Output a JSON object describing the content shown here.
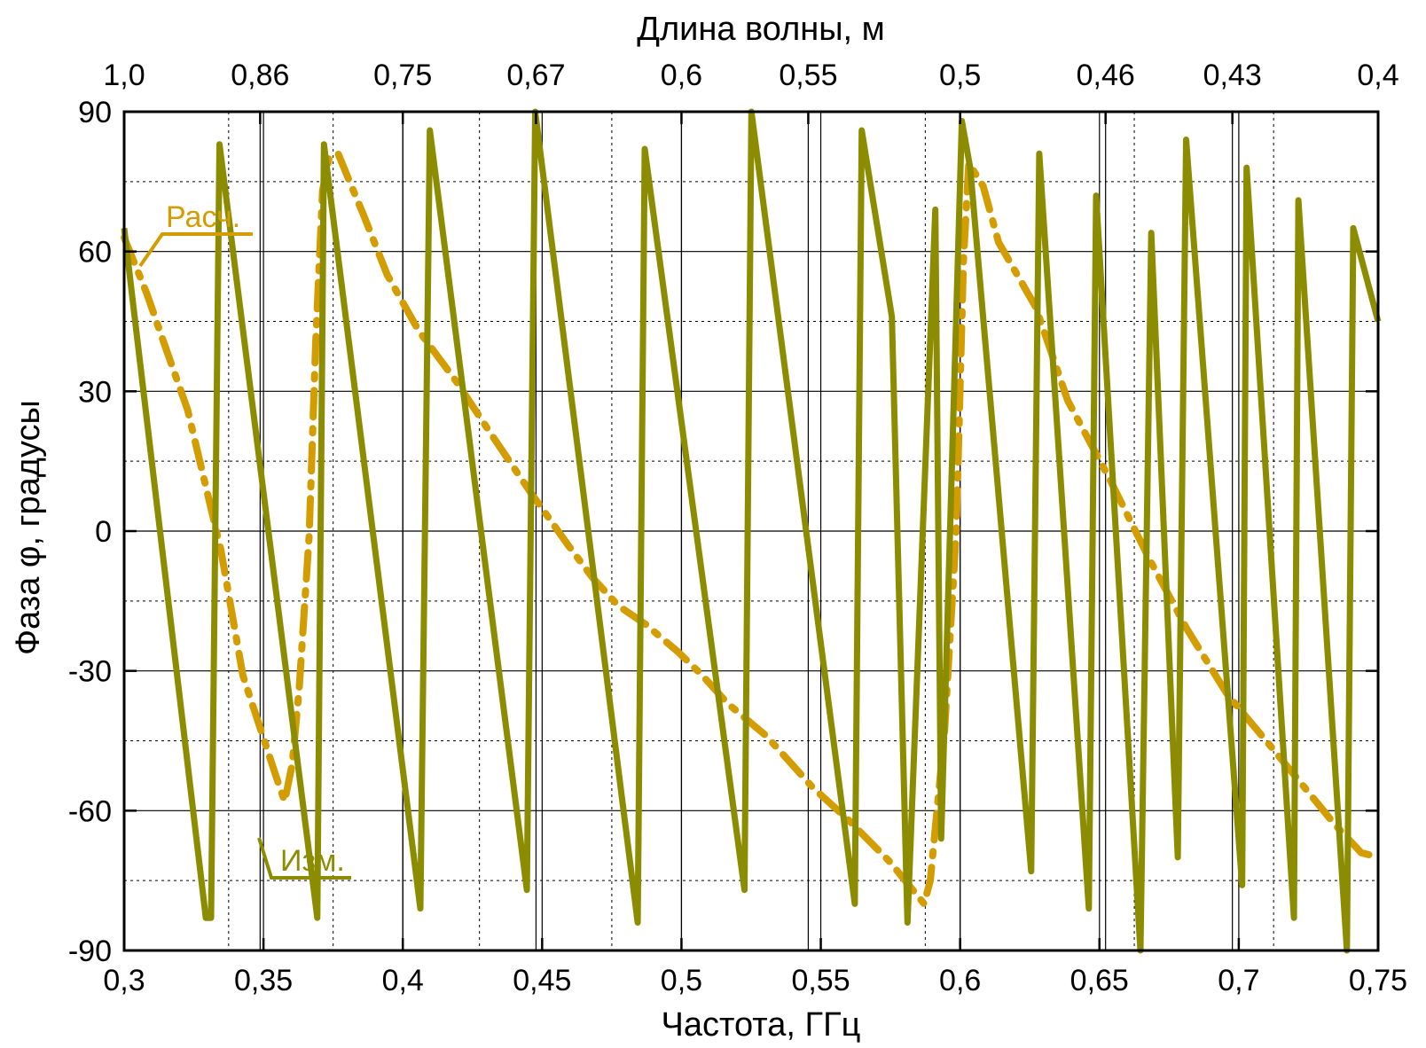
{
  "chart_data": {
    "type": "line",
    "title": "",
    "xlabel": "Частота, ГГц",
    "ylabel": "Фаза φ, градусы",
    "x2label": "Длина волны, м",
    "xlim": [
      0.3,
      0.75
    ],
    "ylim": [
      -90,
      90
    ],
    "grid": true,
    "x_ticks": [
      0.3,
      0.35,
      0.4,
      0.45,
      0.5,
      0.55,
      0.6,
      0.65,
      0.7,
      0.75
    ],
    "x_tick_labels": [
      "0,3",
      "0,35",
      "0,4",
      "0,45",
      "0,5",
      "0,55",
      "0,6",
      "0,65",
      "0,7",
      "0,75"
    ],
    "x_minor_ticks": [
      0.3375,
      0.375,
      0.4275,
      0.475,
      0.5875,
      0.6625,
      0.7125
    ],
    "y_ticks": [
      -90,
      -60,
      -30,
      0,
      30,
      60,
      90
    ],
    "y_tick_labels": [
      "-90",
      "-60",
      "-30",
      "0",
      "30",
      "60",
      "90"
    ],
    "y_minor_ticks": [
      -75,
      -45,
      -15,
      15,
      45,
      75
    ],
    "top_ticks": [
      {
        "label": "1,0",
        "freq": 0.3
      },
      {
        "label": "0,86",
        "freq": 0.3488
      },
      {
        "label": "0,75",
        "freq": 0.4
      },
      {
        "label": "0,67",
        "freq": 0.4478
      },
      {
        "label": "0,6",
        "freq": 0.5
      },
      {
        "label": "0,55",
        "freq": 0.5455
      },
      {
        "label": "0,5",
        "freq": 0.6
      },
      {
        "label": "0,46",
        "freq": 0.6522
      },
      {
        "label": "0,43",
        "freq": 0.6977
      },
      {
        "label": "0,4",
        "freq": 0.75
      }
    ],
    "series": [
      {
        "name": "Изм.",
        "color": "#8c8c00",
        "style": "solid",
        "x": [
          0.3,
          0.3293,
          0.3312,
          0.3342,
          0.3693,
          0.3717,
          0.4063,
          0.4097,
          0.4445,
          0.4475,
          0.4843,
          0.4868,
          0.5226,
          0.5251,
          0.5622,
          0.5647,
          0.5755,
          0.5811,
          0.5911,
          0.5932,
          0.6006,
          0.6036,
          0.6255,
          0.6284,
          0.6462,
          0.6488,
          0.6647,
          0.6686,
          0.6781,
          0.6811,
          0.7012,
          0.7028,
          0.7198,
          0.7214,
          0.7388,
          0.7411,
          0.75
        ],
        "y": [
          65,
          -83,
          -83,
          83,
          -83,
          83,
          -81,
          86,
          -77,
          90,
          -84,
          82,
          -77,
          90,
          -80,
          86,
          46,
          -84,
          69,
          -66,
          88,
          78,
          -73,
          81,
          -81,
          72,
          -90,
          64,
          -70,
          84,
          -76,
          78,
          -83,
          71,
          -90,
          65,
          45
        ]
      },
      {
        "name": "Расч.",
        "color": "#d39c00",
        "style": "dashdot",
        "x": [
          0.3,
          0.3081,
          0.3151,
          0.3228,
          0.3347,
          0.3426,
          0.3547,
          0.3576,
          0.3603,
          0.3628,
          0.3664,
          0.3687,
          0.3712,
          0.3735,
          0.3768,
          0.3809,
          0.3858,
          0.3944,
          0.4057,
          0.4193,
          0.4326,
          0.4462,
          0.4593,
          0.4681,
          0.4773,
          0.4871,
          0.4989,
          0.5075,
          0.5166,
          0.5305,
          0.5471,
          0.5599,
          0.5748,
          0.5871,
          0.5893,
          0.5944,
          0.5986,
          0.6012,
          0.6031,
          0.6083,
          0.6138,
          0.6272,
          0.6386,
          0.6538,
          0.6679,
          0.6814,
          0.6958,
          0.7112,
          0.7236,
          0.7345,
          0.7439,
          0.75
        ],
        "y": [
          63,
          51,
          39,
          26,
          -4,
          -31,
          -53,
          -58,
          -50,
          -34,
          -1,
          40,
          73,
          80,
          81,
          75,
          68,
          55,
          43,
          32,
          20,
          8,
          -3,
          -10,
          -16,
          -20,
          -26,
          -31,
          -37,
          -44,
          -55,
          -62,
          -71,
          -80,
          -75,
          -43,
          0,
          58,
          79,
          74,
          62,
          48,
          28,
          11,
          -6,
          -21,
          -35,
          -46,
          -55,
          -63,
          -69,
          -70
        ]
      }
    ],
    "annotations": [
      {
        "text": "Расч.",
        "series": "Расч."
      },
      {
        "text": "Изм.",
        "series": "Изм."
      }
    ]
  }
}
